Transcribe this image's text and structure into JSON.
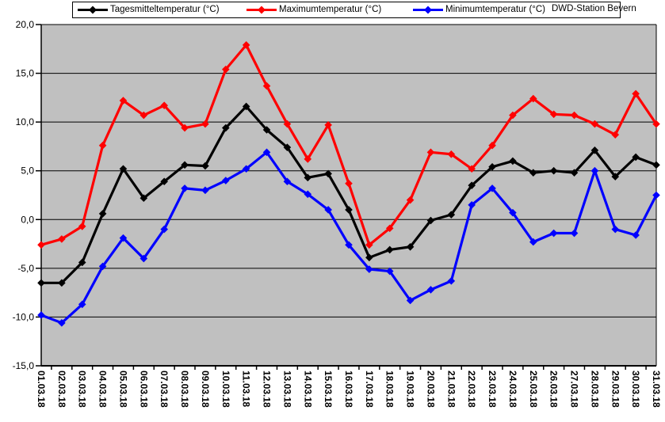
{
  "legend": {
    "items": [
      {
        "id": "tagesmittel",
        "label": "Tagesmitteltemperatur (°C)",
        "color": "#000000"
      },
      {
        "id": "maximum",
        "label": "Maximumtemperatur (°C)",
        "color": "#FF0000"
      },
      {
        "id": "minimum",
        "label": "Minimumtemperatur (°C)",
        "color": "#0000FF"
      }
    ],
    "station_label": "DWD-Station Bevern"
  },
  "chart_data": {
    "type": "line",
    "title": "",
    "xlabel": "",
    "ylabel": "",
    "ylim": [
      -15,
      20
    ],
    "ytick_step": 5,
    "ytick_labels": [
      "20,0",
      "15,0",
      "10,0",
      "5,0",
      "0,0",
      "-5,0",
      "-10,0",
      "-15,0"
    ],
    "grid": true,
    "legend_position": "top",
    "plot_bg": "#C0C0C0",
    "marker": "diamond",
    "annotation": "DWD-Station Bevern",
    "categories": [
      "01.03.18",
      "02.03.18",
      "03.03.18",
      "04.03.18",
      "05.03.18",
      "06.03.18",
      "07.03.18",
      "08.03.18",
      "09.03.18",
      "10.03.18",
      "11.03.18",
      "12.03.18",
      "13.03.18",
      "14.03.18",
      "15.03.18",
      "16.03.18",
      "17.03.18",
      "18.03.18",
      "19.03.18",
      "20.03.18",
      "21.03.18",
      "22.03.18",
      "23.03.18",
      "24.03.18",
      "25.03.18",
      "26.03.18",
      "27.03.18",
      "28.03.18",
      "29.03.18",
      "30.03.18",
      "31.03.18"
    ],
    "series": [
      {
        "id": "tagesmittel",
        "name": "Tagesmitteltemperatur (°C)",
        "color": "#000000",
        "values": [
          -6.5,
          -6.5,
          -4.4,
          0.6,
          5.2,
          2.2,
          3.9,
          5.6,
          5.5,
          9.4,
          11.6,
          9.2,
          7.4,
          4.3,
          4.7,
          1.0,
          -3.9,
          -3.1,
          -2.8,
          -0.1,
          0.5,
          3.5,
          5.4,
          6.0,
          4.8,
          5.0,
          4.8,
          7.1,
          4.4,
          6.4,
          5.6
        ]
      },
      {
        "id": "maximum",
        "name": "Maximumtemperatur (°C)",
        "color": "#FF0000",
        "values": [
          -2.6,
          -2.0,
          -0.7,
          7.6,
          12.2,
          10.7,
          11.7,
          9.4,
          9.8,
          15.4,
          17.9,
          13.7,
          9.8,
          6.2,
          9.7,
          3.7,
          -2.6,
          -0.9,
          2.0,
          6.9,
          6.7,
          5.2,
          7.6,
          10.7,
          12.4,
          10.8,
          10.7,
          9.8,
          8.7,
          12.9,
          9.8
        ]
      },
      {
        "id": "minimum",
        "name": "Minimumtemperatur (°C)",
        "color": "#0000FF",
        "values": [
          -9.8,
          -10.6,
          -8.7,
          -4.8,
          -1.9,
          -4.0,
          -1.0,
          3.2,
          3.0,
          4.0,
          5.2,
          6.9,
          3.9,
          2.6,
          1.0,
          -2.6,
          -5.1,
          -5.3,
          -8.3,
          -7.2,
          -6.3,
          1.5,
          3.2,
          0.7,
          -2.3,
          -1.4,
          -1.4,
          5.0,
          -1.0,
          -1.6,
          2.5
        ]
      }
    ]
  }
}
